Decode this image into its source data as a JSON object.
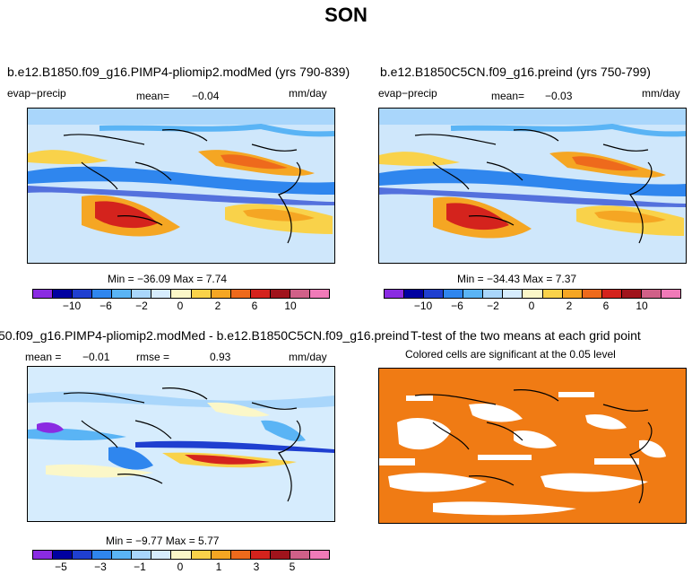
{
  "title": "SON",
  "panels": [
    {
      "title": "b.e12.B1850.f09_g16.PIMP4-pliomip2.modMed (yrs 790-839)",
      "left_label": "evap−precip",
      "mean_label": "mean=",
      "mean_value": "−0.04",
      "units": "mm/day",
      "stats": "Min = −36.09 Max =    7.74",
      "colorbar_ticks": [
        "−10",
        "−6",
        "−2",
        "0",
        "2",
        "6",
        "10"
      ]
    },
    {
      "title": "b.e12.B1850C5CN.f09_g16.preind (yrs 750-799)",
      "left_label": "evap−precip",
      "mean_label": "mean=",
      "mean_value": "−0.03",
      "units": "mm/day",
      "stats": "Min = −34.43 Max =    7.37",
      "colorbar_ticks": [
        "−10",
        "−6",
        "−2",
        "0",
        "2",
        "6",
        "10"
      ]
    },
    {
      "title": "50.f09_g16.PIMP4-pliomip2.modMed - b.e12.B1850C5CN.f09_g16.preind",
      "mean_label": "mean =",
      "mean_value": "−0.01",
      "rmse_label": "rmse =",
      "rmse_value": "0.93",
      "units": "mm/day",
      "stats": "Min =  −9.77 Max =    5.77",
      "colorbar_ticks": [
        "−5",
        "−3",
        "−1",
        "0",
        "1",
        "3",
        "5"
      ]
    },
    {
      "title": "T-test of the two means at each grid point",
      "subtitle": "Colored cells are significant at the 0.05 level"
    }
  ],
  "colors": {
    "scale": [
      "#8a2be2",
      "#0000a0",
      "#1f3fd0",
      "#2f86ee",
      "#5ab4f5",
      "#a9d6fb",
      "#d6ecfd",
      "#fbf7c8",
      "#f9d24a",
      "#f5a623",
      "#ee6a1c",
      "#d4231d",
      "#a0141c",
      "#d06088",
      "#f07ab8"
    ],
    "significant": "#f07b14"
  }
}
